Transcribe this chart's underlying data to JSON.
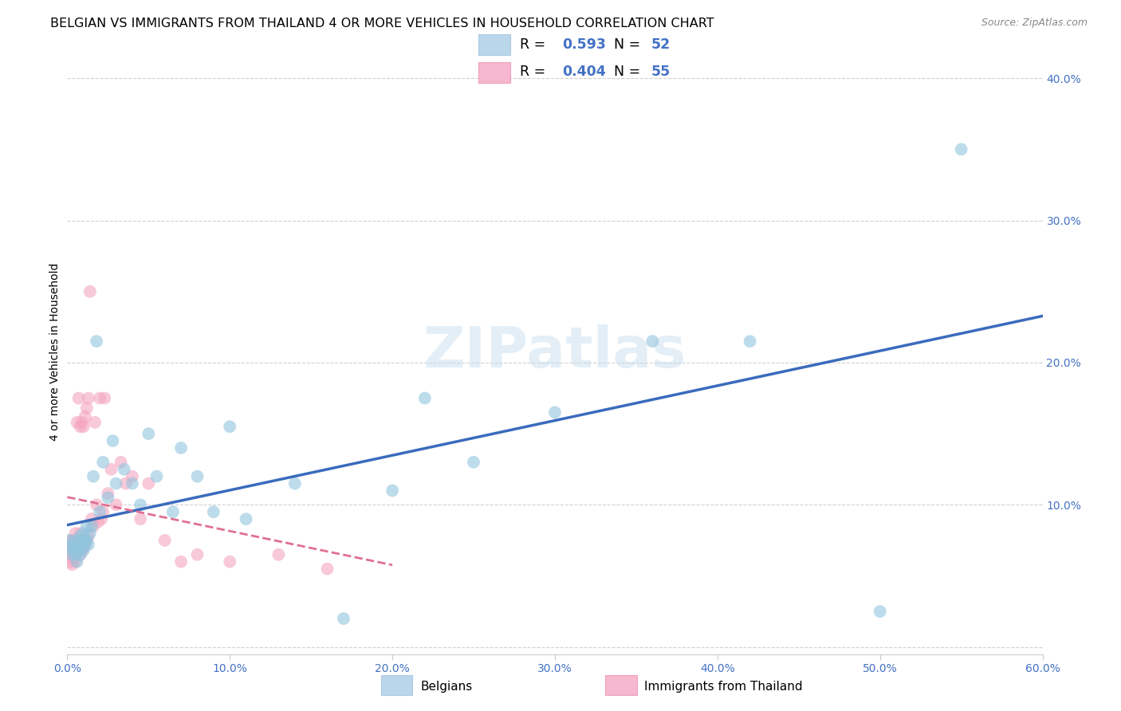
{
  "title": "BELGIAN VS IMMIGRANTS FROM THAILAND 4 OR MORE VEHICLES IN HOUSEHOLD CORRELATION CHART",
  "source": "Source: ZipAtlas.com",
  "ylabel": "4 or more Vehicles in Household",
  "xlim": [
    0.0,
    0.6
  ],
  "ylim": [
    -0.005,
    0.42
  ],
  "xticks": [
    0.0,
    0.1,
    0.2,
    0.3,
    0.4,
    0.5,
    0.6
  ],
  "yticks": [
    0.0,
    0.1,
    0.2,
    0.3,
    0.4
  ],
  "belgian_color": "#92c5de",
  "thai_color": "#f4a6c0",
  "belgian_line_color": "#3a6bbc",
  "thai_line_color": "#e07090",
  "belgian_R": "0.593",
  "belgian_N": "52",
  "thai_R": "0.404",
  "thai_N": "55",
  "watermark": "ZIPatlas",
  "background_color": "#ffffff",
  "grid_color": "#d0d0d0",
  "title_fontsize": 11.5,
  "tick_fontsize": 10,
  "tick_color": "#4472c4",
  "legend_box_color_belgian": "#bad6ea",
  "legend_box_color_thai": "#f5b8ce",
  "belgian_x": [
    0.001,
    0.002,
    0.003,
    0.003,
    0.004,
    0.005,
    0.005,
    0.006,
    0.006,
    0.007,
    0.007,
    0.008,
    0.008,
    0.009,
    0.009,
    0.01,
    0.01,
    0.011,
    0.011,
    0.012,
    0.012,
    0.013,
    0.014,
    0.015,
    0.016,
    0.018,
    0.02,
    0.022,
    0.025,
    0.028,
    0.03,
    0.035,
    0.04,
    0.045,
    0.05,
    0.055,
    0.065,
    0.07,
    0.08,
    0.09,
    0.1,
    0.11,
    0.14,
    0.17,
    0.2,
    0.22,
    0.25,
    0.3,
    0.36,
    0.42,
    0.5,
    0.55
  ],
  "belgian_y": [
    0.075,
    0.07,
    0.065,
    0.072,
    0.068,
    0.075,
    0.065,
    0.07,
    0.06,
    0.072,
    0.068,
    0.078,
    0.065,
    0.075,
    0.07,
    0.08,
    0.068,
    0.075,
    0.072,
    0.085,
    0.075,
    0.072,
    0.08,
    0.085,
    0.12,
    0.215,
    0.095,
    0.13,
    0.105,
    0.145,
    0.115,
    0.125,
    0.115,
    0.1,
    0.15,
    0.12,
    0.095,
    0.14,
    0.12,
    0.095,
    0.155,
    0.09,
    0.115,
    0.02,
    0.11,
    0.175,
    0.13,
    0.165,
    0.215,
    0.215,
    0.025,
    0.35
  ],
  "thai_x": [
    0.001,
    0.001,
    0.002,
    0.002,
    0.002,
    0.003,
    0.003,
    0.003,
    0.004,
    0.004,
    0.005,
    0.005,
    0.005,
    0.006,
    0.006,
    0.007,
    0.007,
    0.008,
    0.008,
    0.008,
    0.009,
    0.009,
    0.01,
    0.01,
    0.01,
    0.011,
    0.011,
    0.012,
    0.012,
    0.013,
    0.013,
    0.014,
    0.015,
    0.016,
    0.017,
    0.018,
    0.019,
    0.02,
    0.021,
    0.022,
    0.023,
    0.025,
    0.027,
    0.03,
    0.033,
    0.036,
    0.04,
    0.045,
    0.05,
    0.06,
    0.07,
    0.08,
    0.1,
    0.13,
    0.16
  ],
  "thai_y": [
    0.068,
    0.072,
    0.06,
    0.065,
    0.075,
    0.058,
    0.07,
    0.065,
    0.062,
    0.075,
    0.06,
    0.068,
    0.08,
    0.065,
    0.158,
    0.072,
    0.175,
    0.065,
    0.08,
    0.155,
    0.068,
    0.158,
    0.07,
    0.155,
    0.075,
    0.072,
    0.162,
    0.075,
    0.168,
    0.078,
    0.175,
    0.25,
    0.09,
    0.085,
    0.158,
    0.1,
    0.088,
    0.175,
    0.09,
    0.095,
    0.175,
    0.108,
    0.125,
    0.1,
    0.13,
    0.115,
    0.12,
    0.09,
    0.115,
    0.075,
    0.06,
    0.065,
    0.06,
    0.065,
    0.055
  ]
}
